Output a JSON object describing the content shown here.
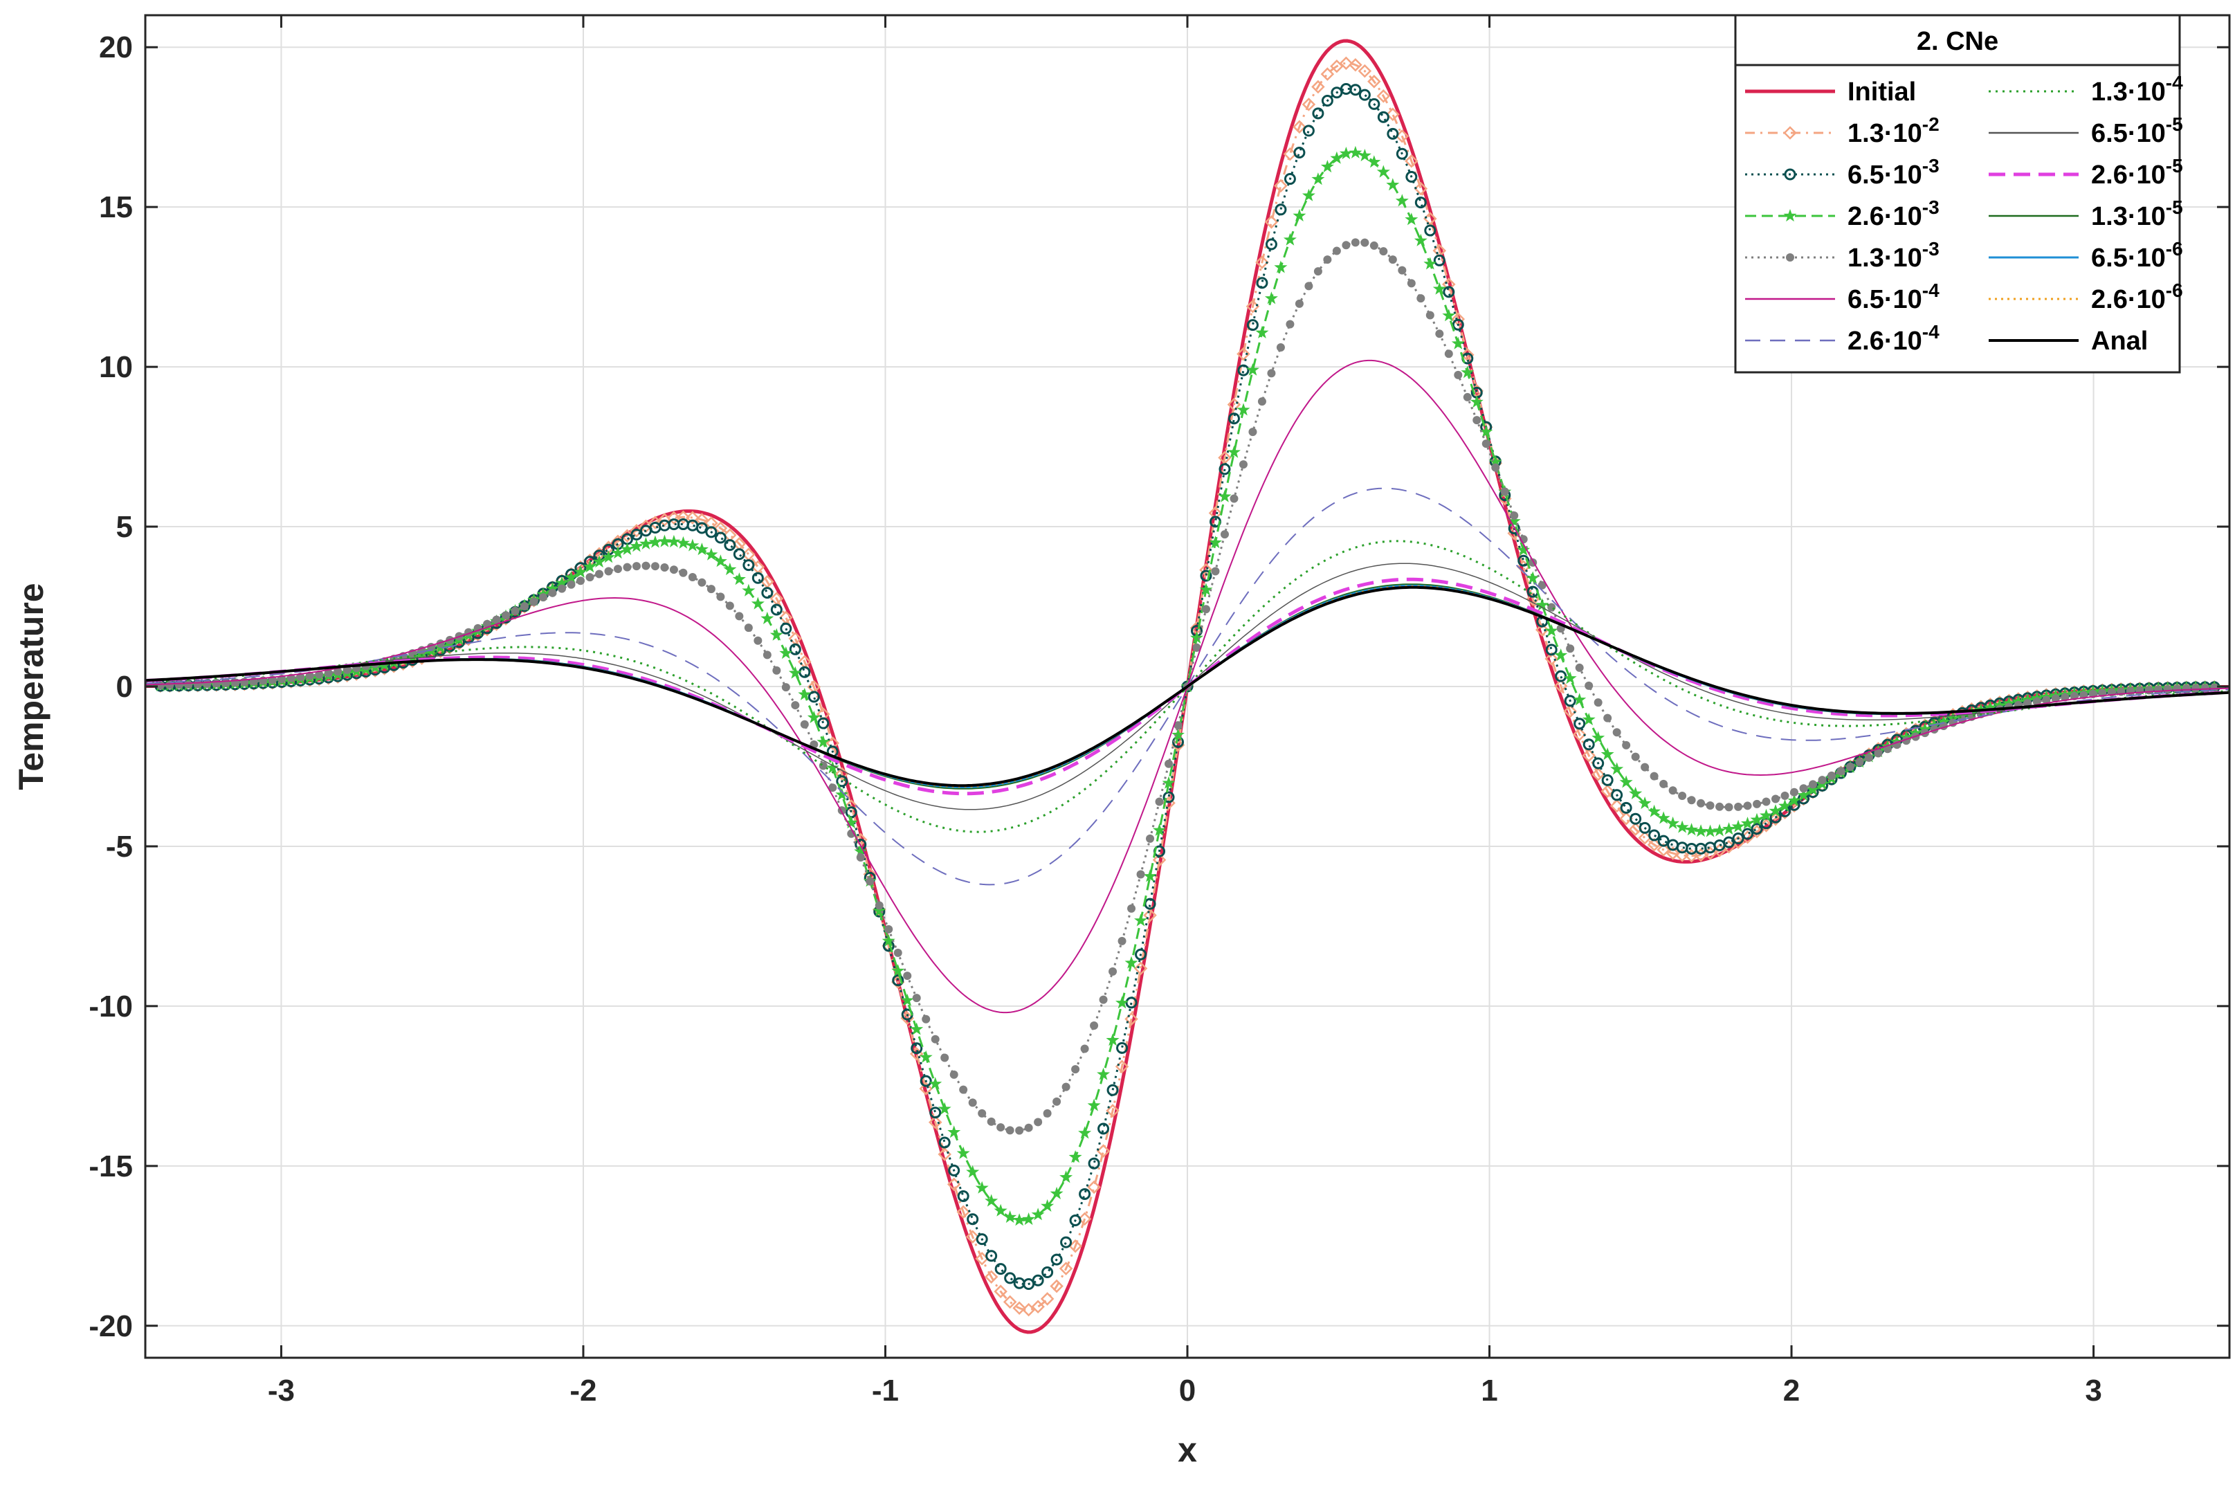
{
  "chart_data": {
    "type": "line",
    "xlabel": "x",
    "ylabel": "Temperature",
    "xlim": [
      -3.45,
      3.45
    ],
    "ylim": [
      -21,
      21
    ],
    "xticks": [
      -3,
      -2,
      -1,
      0,
      1,
      2,
      3
    ],
    "yticks": [
      -20,
      -15,
      -10,
      -5,
      0,
      5,
      10,
      15,
      20
    ],
    "grid": true,
    "legend": {
      "title": "2. CNe",
      "placement": "top-right",
      "columns": 2
    },
    "curve_model": "T(x) = A * 8 * x * (2x^2 - 3) * exp(-x^2 * s) scaled; series listed by peak amplitude at x = 0.5",
    "series": [
      {
        "name": "Initial",
        "base": "1.3",
        "exp": "",
        "color": "#d9234f",
        "dash": "",
        "width": 5,
        "marker": "",
        "peak": 20.2,
        "spread": 1.0
      },
      {
        "name": "1.3·10^-2",
        "base": "1.3",
        "exp": "-2",
        "color": "#f4a582",
        "dash": "14 8 3 8",
        "width": 3,
        "marker": "diamond",
        "peak": 19.5,
        "spread": 1.02
      },
      {
        "name": "6.5·10^-3",
        "base": "6.5",
        "exp": "-3",
        "color": "#0b4f4f",
        "dash": "3 6",
        "width": 3,
        "marker": "circle",
        "peak": 18.7,
        "spread": 1.04
      },
      {
        "name": "2.6·10^-3",
        "base": "2.6",
        "exp": "-3",
        "color": "#3cc43c",
        "dash": "16 8",
        "width": 3,
        "marker": "star",
        "peak": 16.7,
        "spread": 1.09
      },
      {
        "name": "1.3·10^-3",
        "base": "1.3",
        "exp": "-3",
        "color": "#7f7f7f",
        "dash": "3 6",
        "width": 3,
        "marker": "dot",
        "peak": 13.9,
        "spread": 1.18
      },
      {
        "name": "6.5·10^-4",
        "base": "6.5",
        "exp": "-4",
        "color": "#c1188a",
        "dash": "",
        "width": 2,
        "marker": "",
        "peak": 10.2,
        "spread": 1.32
      },
      {
        "name": "2.6·10^-4",
        "base": "2.6",
        "exp": "-4",
        "color": "#6e6ebe",
        "dash": "22 14",
        "width": 2,
        "marker": "",
        "peak": 6.2,
        "spread": 1.55
      },
      {
        "name": "1.3·10^-4",
        "base": "1.3",
        "exp": "-4",
        "color": "#2ca02c",
        "dash": "3 7",
        "width": 3,
        "marker": "",
        "peak": 4.55,
        "spread": 1.75
      },
      {
        "name": "6.5·10^-5",
        "base": "6.5",
        "exp": "-5",
        "color": "#555555",
        "dash": "",
        "width": 1.5,
        "marker": "",
        "peak": 3.85,
        "spread": 1.87
      },
      {
        "name": "2.6·10^-5",
        "base": "2.6",
        "exp": "-5",
        "color": "#e040e0",
        "dash": "24 12",
        "width": 5,
        "marker": "",
        "peak": 3.35,
        "spread": 1.97
      },
      {
        "name": "1.3·10^-5",
        "base": "1.3",
        "exp": "-5",
        "color": "#1f6b1f",
        "dash": "",
        "width": 2,
        "marker": "",
        "peak": 3.2,
        "spread": 2.0
      },
      {
        "name": "6.5·10^-6",
        "base": "6.5",
        "exp": "-6",
        "color": "#1f8fd6",
        "dash": "",
        "width": 3,
        "marker": "",
        "peak": 3.15,
        "spread": 2.01
      },
      {
        "name": "2.6·10^-6",
        "base": "2.6",
        "exp": "-6",
        "color": "#f0a020",
        "dash": "3 6",
        "width": 3,
        "marker": "",
        "peak": 3.13,
        "spread": 2.02
      },
      {
        "name": "Anal",
        "base": "",
        "exp": "",
        "color": "#000000",
        "dash": "",
        "width": 4,
        "marker": "",
        "peak": 3.1,
        "spread": 2.03
      }
    ]
  }
}
